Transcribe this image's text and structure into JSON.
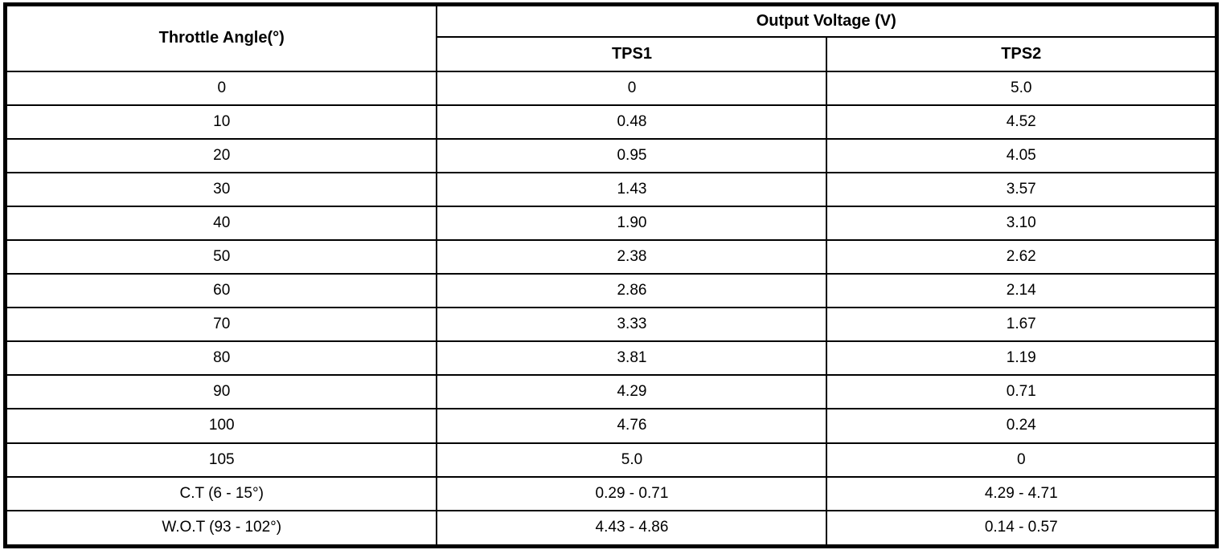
{
  "table": {
    "col1_header": "Throttle Angle(°)",
    "group_header": "Output Voltage (V)",
    "sub_headers": [
      "TPS1",
      "TPS2"
    ],
    "rows": [
      {
        "angle": "0",
        "tps1": "0",
        "tps2": "5.0"
      },
      {
        "angle": "10",
        "tps1": "0.48",
        "tps2": "4.52"
      },
      {
        "angle": "20",
        "tps1": "0.95",
        "tps2": "4.05"
      },
      {
        "angle": "30",
        "tps1": "1.43",
        "tps2": "3.57"
      },
      {
        "angle": "40",
        "tps1": "1.90",
        "tps2": "3.10"
      },
      {
        "angle": "50",
        "tps1": "2.38",
        "tps2": "2.62"
      },
      {
        "angle": "60",
        "tps1": "2.86",
        "tps2": "2.14"
      },
      {
        "angle": "70",
        "tps1": "3.33",
        "tps2": "1.67"
      },
      {
        "angle": "80",
        "tps1": "3.81",
        "tps2": "1.19"
      },
      {
        "angle": "90",
        "tps1": "4.29",
        "tps2": "0.71"
      },
      {
        "angle": "100",
        "tps1": "4.76",
        "tps2": "0.24"
      },
      {
        "angle": "105",
        "tps1": "5.0",
        "tps2": "0"
      },
      {
        "angle": "C.T (6 - 15°)",
        "tps1": "0.29 - 0.71",
        "tps2": "4.29 - 4.71"
      },
      {
        "angle": "W.O.T (93 - 102°)",
        "tps1": "4.43 - 4.86",
        "tps2": "0.14 - 0.57"
      }
    ]
  },
  "colors": {
    "border": "#000000",
    "background": "#ffffff",
    "text": "#000000"
  }
}
